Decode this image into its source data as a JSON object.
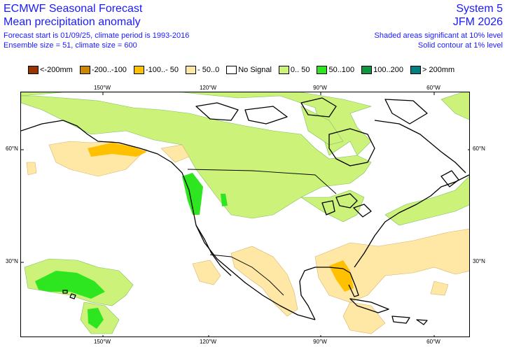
{
  "header": {
    "title_left": "ECMWF Seasonal Forecast",
    "subtitle_left": "Mean precipitation anomaly",
    "meta_line1": "Forecast start is 01/09/25, climate period is 1993-2016",
    "meta_line2": "Ensemble size = 51, climate size = 600",
    "title_right": "System 5",
    "subtitle_right": "JFM 2026",
    "meta_right1": "Shaded areas significant at 10% level",
    "meta_right2": "Solid contour at 1% level"
  },
  "legend": [
    {
      "label": "<-200mm",
      "color": "#993300"
    },
    {
      "label": "-200..-100",
      "color": "#cc8800"
    },
    {
      "label": "-100..- 50",
      "color": "#ffc000"
    },
    {
      "label": "- 50..0",
      "color": "#ffe7a6"
    },
    {
      "label": "No Signal",
      "color": "#ffffff"
    },
    {
      "label": "0.. 50",
      "color": "#ccf27a"
    },
    {
      "label": "50..100",
      "color": "#2ee620"
    },
    {
      "label": "100..200",
      "color": "#109640"
    },
    {
      "label": "> 200mm",
      "color": "#008080"
    }
  ],
  "axes": {
    "lon_top": [
      "150°W",
      "120°W",
      "90°W",
      "60°W"
    ],
    "lon_bottom": [
      "150°W",
      "120°W",
      "90°W",
      "60°W"
    ],
    "lat_left": [
      "60°N",
      "30°N"
    ],
    "lat_right": [
      "60°N",
      "30°N"
    ]
  }
}
